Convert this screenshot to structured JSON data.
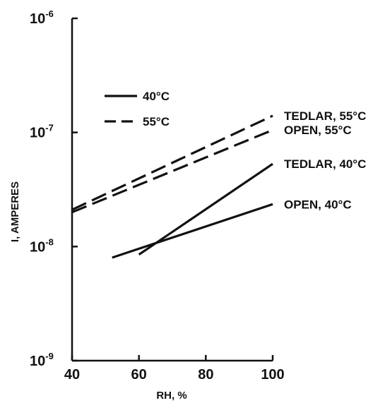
{
  "chart_data": {
    "type": "line",
    "title": "",
    "xlabel": "RH, %",
    "ylabel": "I, AMPERES",
    "y_scale": "log",
    "xlim": [
      40,
      100
    ],
    "ylim": [
      1e-09,
      1e-06
    ],
    "x_ticks": [
      {
        "value": 40,
        "label": "40"
      },
      {
        "value": 60,
        "label": "60"
      },
      {
        "value": 80,
        "label": "80"
      },
      {
        "value": 100,
        "label": "100"
      }
    ],
    "y_ticks": [
      {
        "value": 1e-09,
        "base": "10",
        "exp": "-9"
      },
      {
        "value": 1e-08,
        "base": "10",
        "exp": "-8"
      },
      {
        "value": 1e-07,
        "base": "10",
        "exp": "-7"
      },
      {
        "value": 1e-06,
        "base": "10",
        "exp": "-6"
      }
    ],
    "legend": {
      "position": "upper-left",
      "entries": [
        {
          "label": "40°C",
          "style": "solid"
        },
        {
          "label": "55°C",
          "style": "dashed"
        }
      ]
    },
    "series": [
      {
        "name": "TEDLAR, 55°C",
        "style": "dashed",
        "x": [
          40,
          100
        ],
        "y": [
          2.1e-08,
          1.4e-07
        ]
      },
      {
        "name": "OPEN, 55°C",
        "style": "dashed",
        "x": [
          40,
          100
        ],
        "y": [
          2e-08,
          1.05e-07
        ]
      },
      {
        "name": "TEDLAR, 40°C",
        "style": "solid",
        "x": [
          60,
          100
        ],
        "y": [
          8.5e-09,
          5.3e-08
        ]
      },
      {
        "name": "OPEN, 40°C",
        "style": "solid",
        "x": [
          52,
          100
        ],
        "y": [
          8e-09,
          2.35e-08
        ]
      }
    ],
    "grid": false,
    "line_color": "#111111"
  }
}
